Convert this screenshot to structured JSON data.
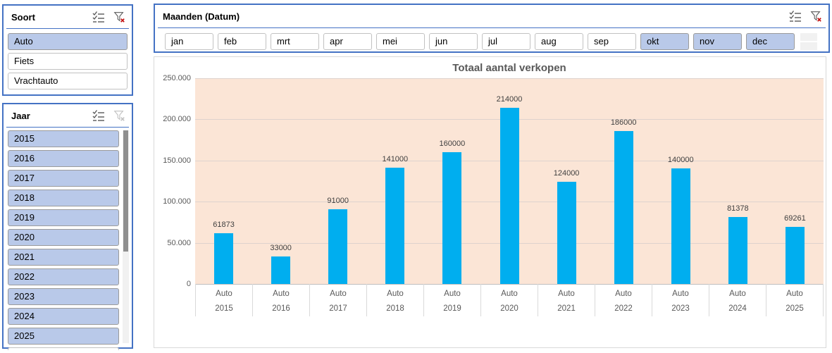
{
  "soort_slicer": {
    "title": "Soort",
    "items": [
      {
        "label": "Auto",
        "selected": true
      },
      {
        "label": "Fiets",
        "selected": false
      },
      {
        "label": "Vrachtauto",
        "selected": false
      }
    ]
  },
  "jaar_slicer": {
    "title": "Jaar",
    "items": [
      {
        "label": "2015",
        "selected": true
      },
      {
        "label": "2016",
        "selected": true
      },
      {
        "label": "2017",
        "selected": true
      },
      {
        "label": "2018",
        "selected": true
      },
      {
        "label": "2019",
        "selected": true
      },
      {
        "label": "2020",
        "selected": true
      },
      {
        "label": "2021",
        "selected": true
      },
      {
        "label": "2022",
        "selected": true
      },
      {
        "label": "2023",
        "selected": true
      },
      {
        "label": "2024",
        "selected": true
      },
      {
        "label": "2025",
        "selected": true
      }
    ]
  },
  "maanden_slicer": {
    "title": "Maanden (Datum)",
    "items": [
      {
        "label": "jan",
        "selected": false
      },
      {
        "label": "feb",
        "selected": false
      },
      {
        "label": "mrt",
        "selected": false
      },
      {
        "label": "apr",
        "selected": false
      },
      {
        "label": "mei",
        "selected": false
      },
      {
        "label": "jun",
        "selected": false
      },
      {
        "label": "jul",
        "selected": false
      },
      {
        "label": "aug",
        "selected": false
      },
      {
        "label": "sep",
        "selected": false
      },
      {
        "label": "okt",
        "selected": true
      },
      {
        "label": "nov",
        "selected": true
      },
      {
        "label": "dec",
        "selected": true
      }
    ]
  },
  "icons": {
    "multi_select": "multi-select-checklist",
    "clear_filter": "funnel-with-red-x",
    "clear_filter_disabled": "funnel-grayed"
  },
  "colors": {
    "slicer_border": "#4472C4",
    "selected_item_fill": "#B9C9E9",
    "bar_color": "#00AEEF",
    "plot_background": "#FBE5D6",
    "title_gray": "#595959"
  },
  "chart_data": {
    "type": "bar",
    "title": "Totaal aantal verkopen",
    "series_name": "Auto",
    "categories": [
      "2015",
      "2016",
      "2017",
      "2018",
      "2019",
      "2020",
      "2021",
      "2022",
      "2023",
      "2024",
      "2025"
    ],
    "values": [
      61873,
      33000,
      91000,
      141000,
      160000,
      214000,
      124000,
      186000,
      140000,
      81378,
      69261
    ],
    "value_labels": [
      "61873",
      "33000",
      "91000",
      "141000",
      "160000",
      "214000",
      "124000",
      "186000",
      "140000",
      "81378",
      "69261"
    ],
    "ylim": [
      0,
      250000
    ],
    "ytick_values": [
      250000,
      200000,
      150000,
      100000,
      50000,
      0
    ],
    "ytick_labels": [
      "250.000",
      "200.000",
      "150.000",
      "100.000",
      "50.000",
      "0"
    ],
    "grid": true,
    "legend": "none",
    "xlabel": "",
    "ylabel": ""
  }
}
